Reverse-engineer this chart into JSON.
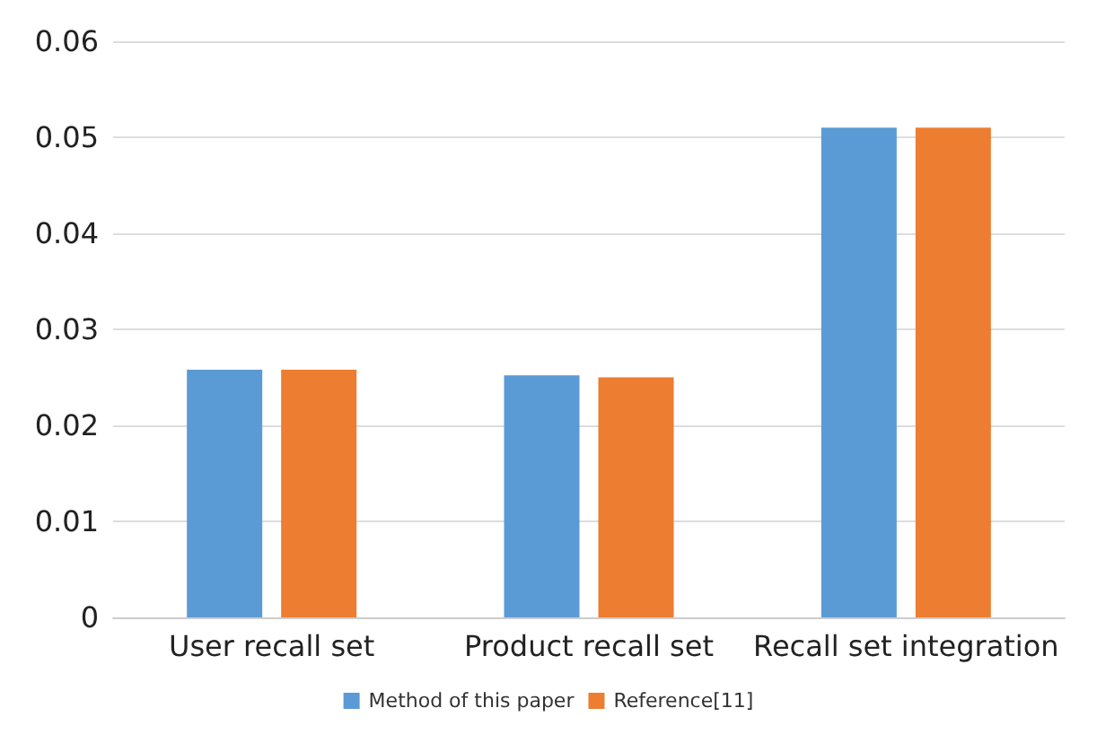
{
  "chart_data": {
    "type": "bar",
    "categories": [
      "User recall set",
      "Product recall set",
      "Recall set integration"
    ],
    "series": [
      {
        "name": "Method of this paper",
        "color": "#5b9bd5",
        "values": [
          0.0258,
          0.0252,
          0.051
        ]
      },
      {
        "name": "Reference[11]",
        "color": "#ed7d31",
        "values": [
          0.0258,
          0.025,
          0.051
        ]
      }
    ],
    "ylim": [
      0,
      0.06
    ],
    "yticks": [
      0,
      0.01,
      0.02,
      0.03,
      0.04,
      0.05,
      0.06
    ],
    "grid": "y",
    "legend": "bottom"
  }
}
